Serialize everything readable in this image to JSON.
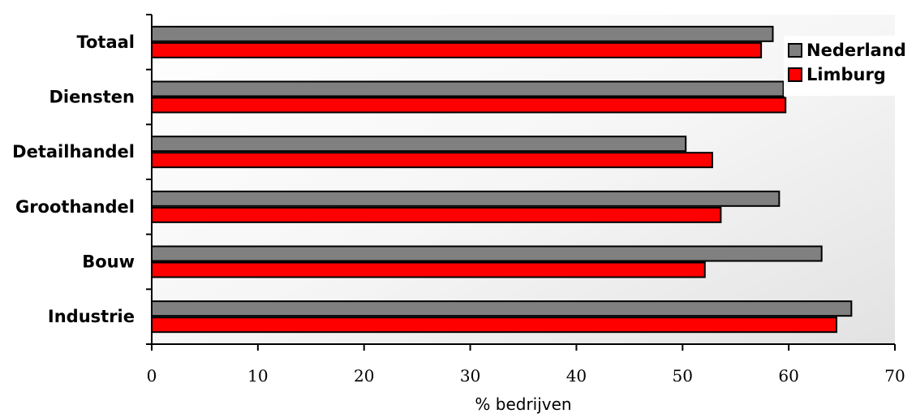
{
  "chart_data": {
    "type": "bar",
    "orientation": "horizontal",
    "categories": [
      "Totaal",
      "Diensten",
      "Detailhandel",
      "Groothandel",
      "Bouw",
      "Industrie"
    ],
    "series": [
      {
        "name": "Nederland",
        "color": "#808080",
        "values": [
          58.5,
          59.5,
          50.3,
          59.1,
          63.1,
          65.9
        ]
      },
      {
        "name": "Limburg",
        "color": "#ff0000",
        "values": [
          57.4,
          59.7,
          52.8,
          53.6,
          52.1,
          64.5
        ]
      }
    ],
    "xlabel": "% bedrijven",
    "xlim": [
      0,
      70
    ],
    "xticks": [
      "0",
      "10",
      "20",
      "30",
      "40",
      "50",
      "60",
      "70"
    ],
    "grid": false,
    "legend_position": "top-right"
  }
}
